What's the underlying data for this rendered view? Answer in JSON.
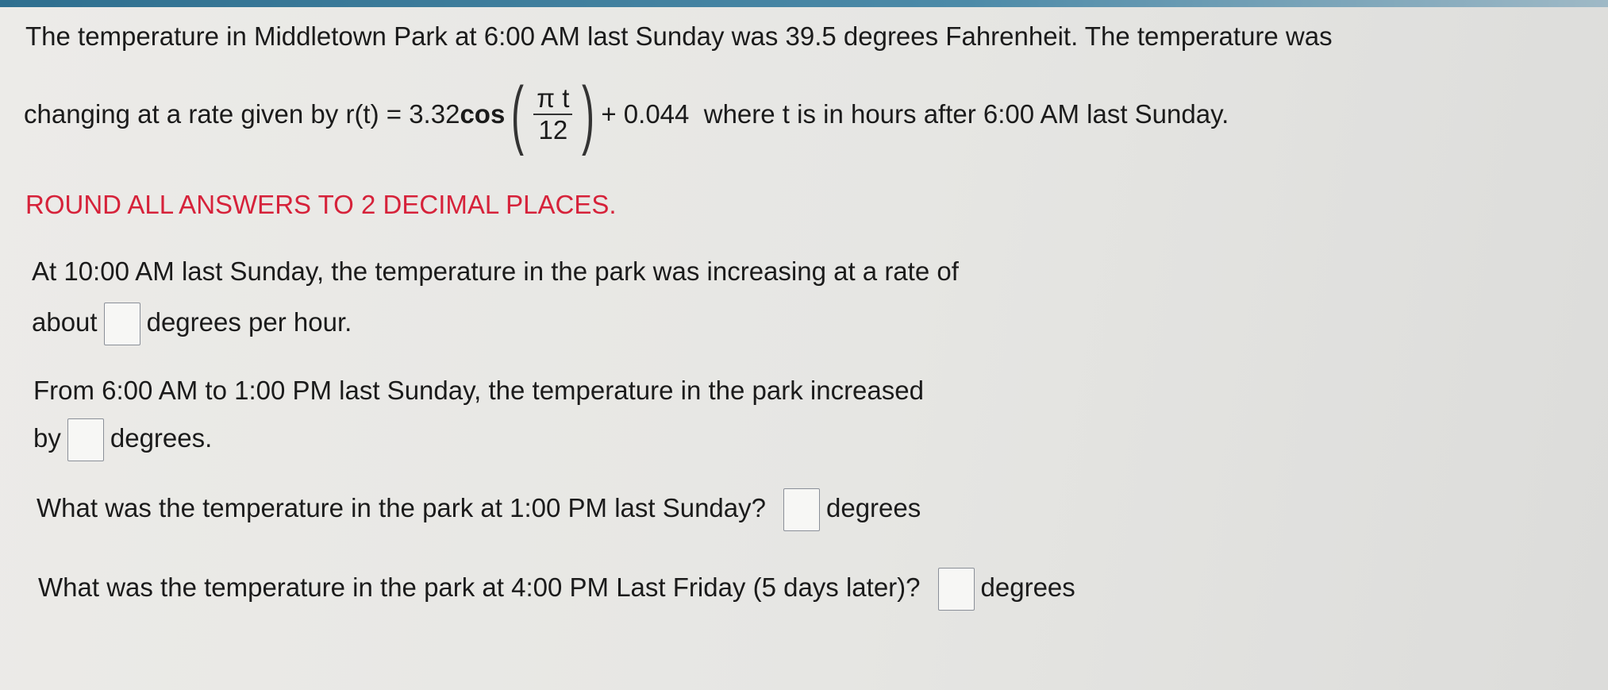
{
  "intro": {
    "line1": "The temperature in Middletown Park at 6:00 AM last Sunday was 39.5 degrees Fahrenheit.  The temperature was",
    "line2_prefix": "changing at a rate given by ",
    "formula_lhs": "r(t) = 3.32 ",
    "formula_fn": "cos",
    "frac_num": "π t",
    "frac_den": "12",
    "formula_tail": "+ 0.044",
    "line2_suffix": "where t is in hours after 6:00 AM last Sunday."
  },
  "instruction": "ROUND ALL ANSWERS TO 2 DECIMAL PLACES.",
  "instruction_color": "#d6223a",
  "questions": [
    {
      "part1": "At 10:00 AM last Sunday, the temperature in the park was increasing at a rate of",
      "before": "about",
      "after": "degrees per hour.",
      "value": ""
    },
    {
      "part1": "From 6:00 AM to 1:00 PM last Sunday, the temperature in the park increased",
      "before": "by",
      "after": "degrees.",
      "value": ""
    },
    {
      "before": "What was the temperature in the park at 1:00 PM last Sunday?",
      "after": "degrees",
      "value": ""
    },
    {
      "before": "What was the temperature in the park at 4:00 PM Last Friday (5 days later)?",
      "after": "degrees",
      "value": ""
    }
  ]
}
